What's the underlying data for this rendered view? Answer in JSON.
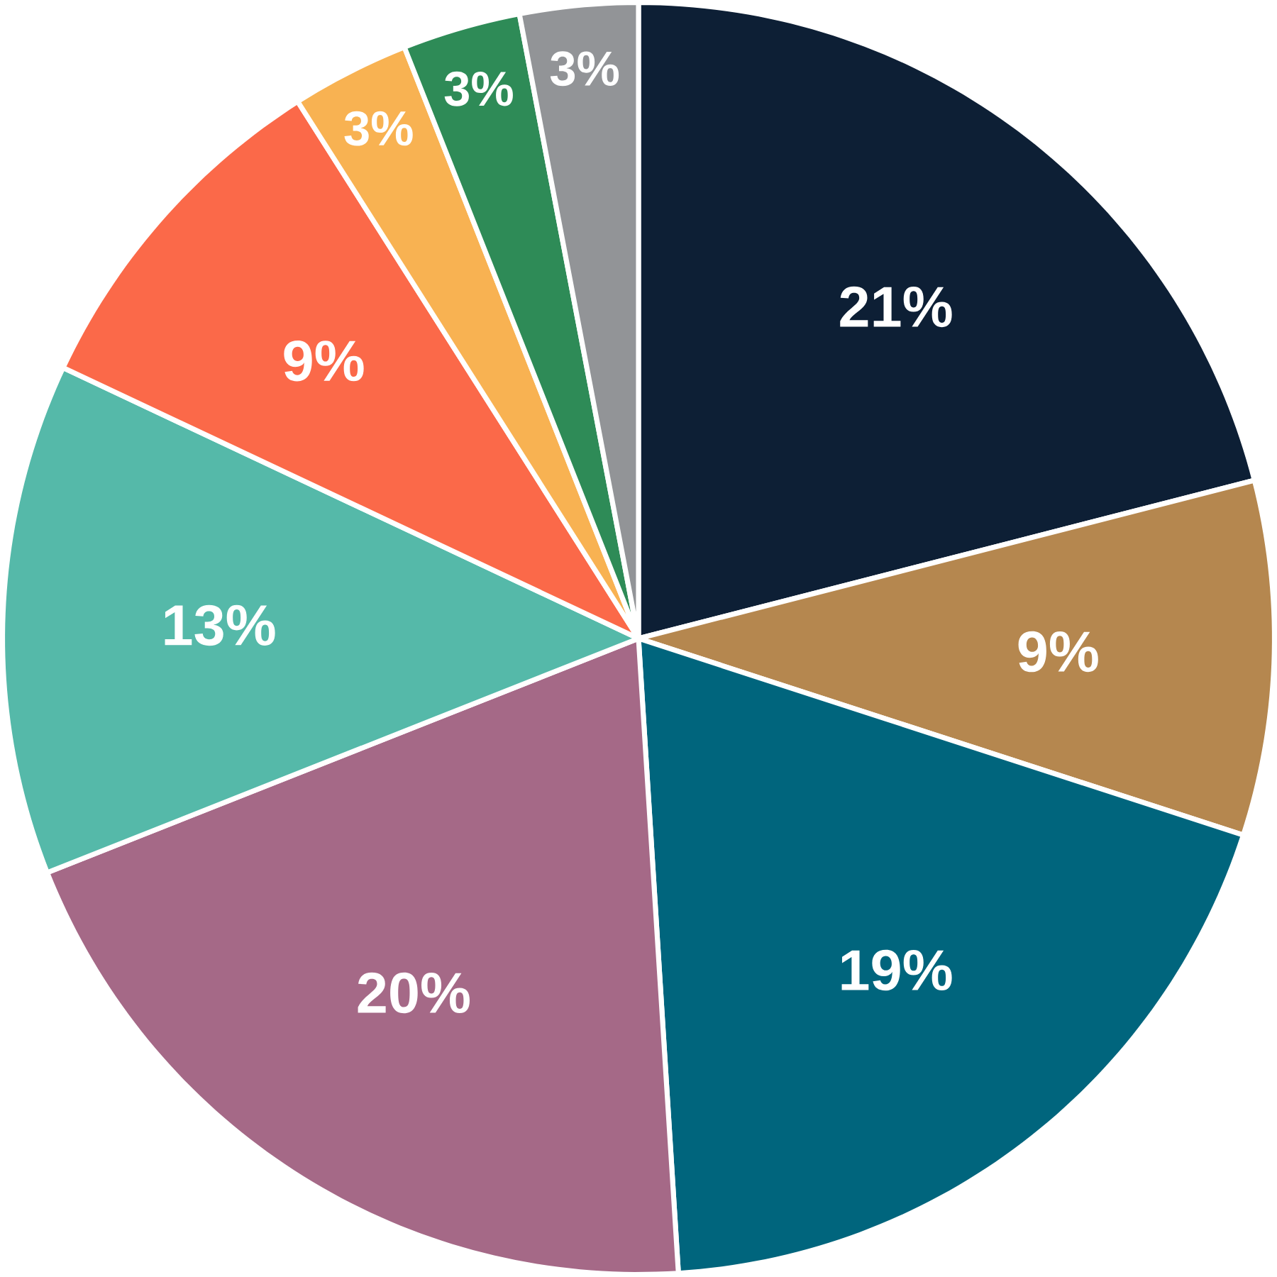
{
  "chart_data": {
    "type": "pie",
    "categories": [
      null,
      null,
      null,
      null,
      null,
      null,
      null,
      null,
      null
    ],
    "values": [
      21,
      9,
      19,
      20,
      13,
      9,
      3,
      3,
      3
    ],
    "value_labels": [
      "21%",
      "9%",
      "19%",
      "20%",
      "13%",
      "9%",
      "3%",
      "3%",
      "3%"
    ],
    "colors": [
      "#0d1f35",
      "#b5874f",
      "#00657d",
      "#a56987",
      "#55b9a9",
      "#fb6949",
      "#f8b252",
      "#2e8b57",
      "#929497"
    ]
  }
}
